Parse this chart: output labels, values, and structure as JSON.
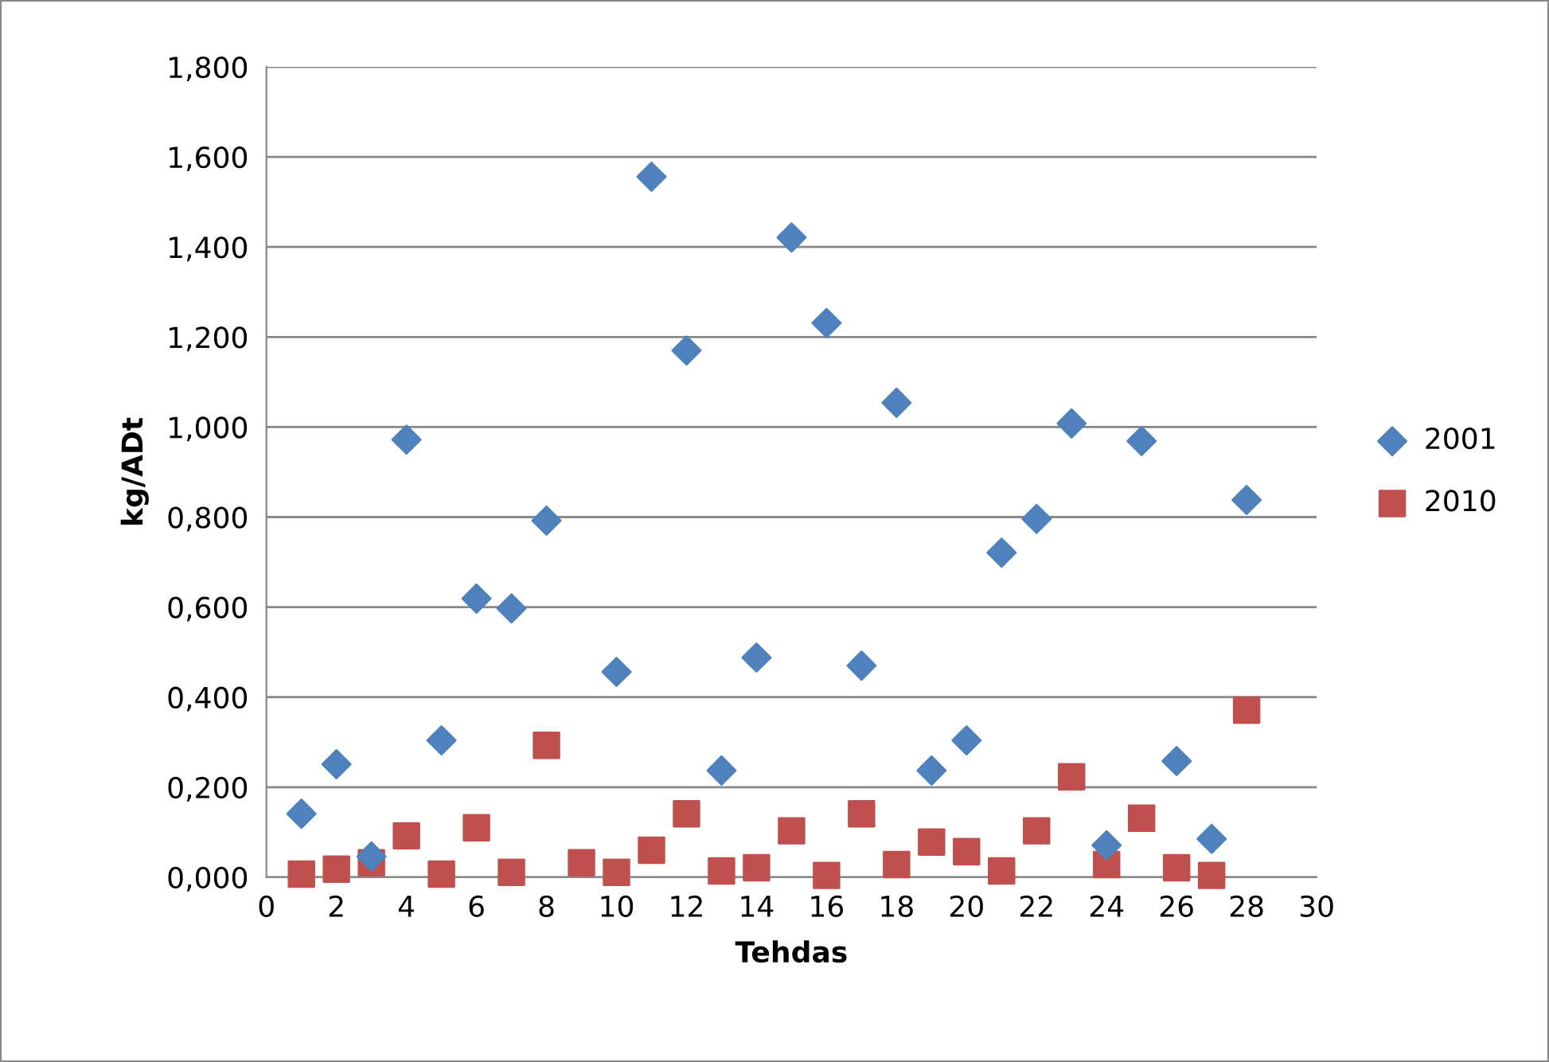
{
  "chart_data": {
    "type": "scatter",
    "xlabel": "Tehdas",
    "ylabel": "kg/ADt",
    "x": [
      1,
      2,
      3,
      4,
      5,
      6,
      7,
      8,
      9,
      10,
      11,
      12,
      13,
      14,
      15,
      16,
      17,
      18,
      19,
      20,
      21,
      22,
      23,
      24,
      25,
      26,
      27,
      28
    ],
    "series": [
      {
        "name": "2001",
        "color": "#4f81bd",
        "marker": "diamond",
        "values": [
          0.141,
          0.251,
          0.046,
          0.972,
          0.304,
          0.619,
          0.597,
          0.792,
          null,
          0.456,
          1.556,
          1.17,
          0.237,
          0.488,
          1.421,
          1.231,
          0.47,
          1.054,
          0.237,
          0.304,
          0.721,
          0.796,
          1.008,
          0.071,
          0.969,
          0.258,
          0.085,
          0.838
        ]
      },
      {
        "name": "2010",
        "color": "#c0504d",
        "marker": "square",
        "values": [
          0.007,
          0.018,
          0.032,
          0.092,
          0.007,
          0.11,
          0.011,
          0.293,
          0.032,
          0.011,
          0.06,
          0.141,
          0.014,
          0.021,
          0.103,
          0.004,
          0.141,
          0.028,
          0.078,
          0.057,
          0.014,
          0.103,
          0.223,
          0.028,
          0.131,
          0.021,
          0.004,
          0.371
        ]
      }
    ],
    "xlim": [
      0,
      30
    ],
    "xticks": [
      0,
      2,
      4,
      6,
      8,
      10,
      12,
      14,
      16,
      18,
      20,
      22,
      24,
      26,
      28,
      30
    ],
    "ylim": [
      0,
      1.8
    ],
    "yticks": [
      {
        "value": 0,
        "label": "0,000"
      },
      {
        "value": 0.2,
        "label": "0,200"
      },
      {
        "value": 0.4,
        "label": "0,400"
      },
      {
        "value": 0.6,
        "label": "0,600"
      },
      {
        "value": 0.8,
        "label": "0,800"
      },
      {
        "value": 1.0,
        "label": "1,000"
      },
      {
        "value": 1.2,
        "label": "1,200"
      },
      {
        "value": 1.4,
        "label": "1,400"
      },
      {
        "value": 1.6,
        "label": "1,600"
      },
      {
        "value": 1.8,
        "label": "1,800"
      }
    ],
    "grid": "y",
    "legend": "right"
  }
}
